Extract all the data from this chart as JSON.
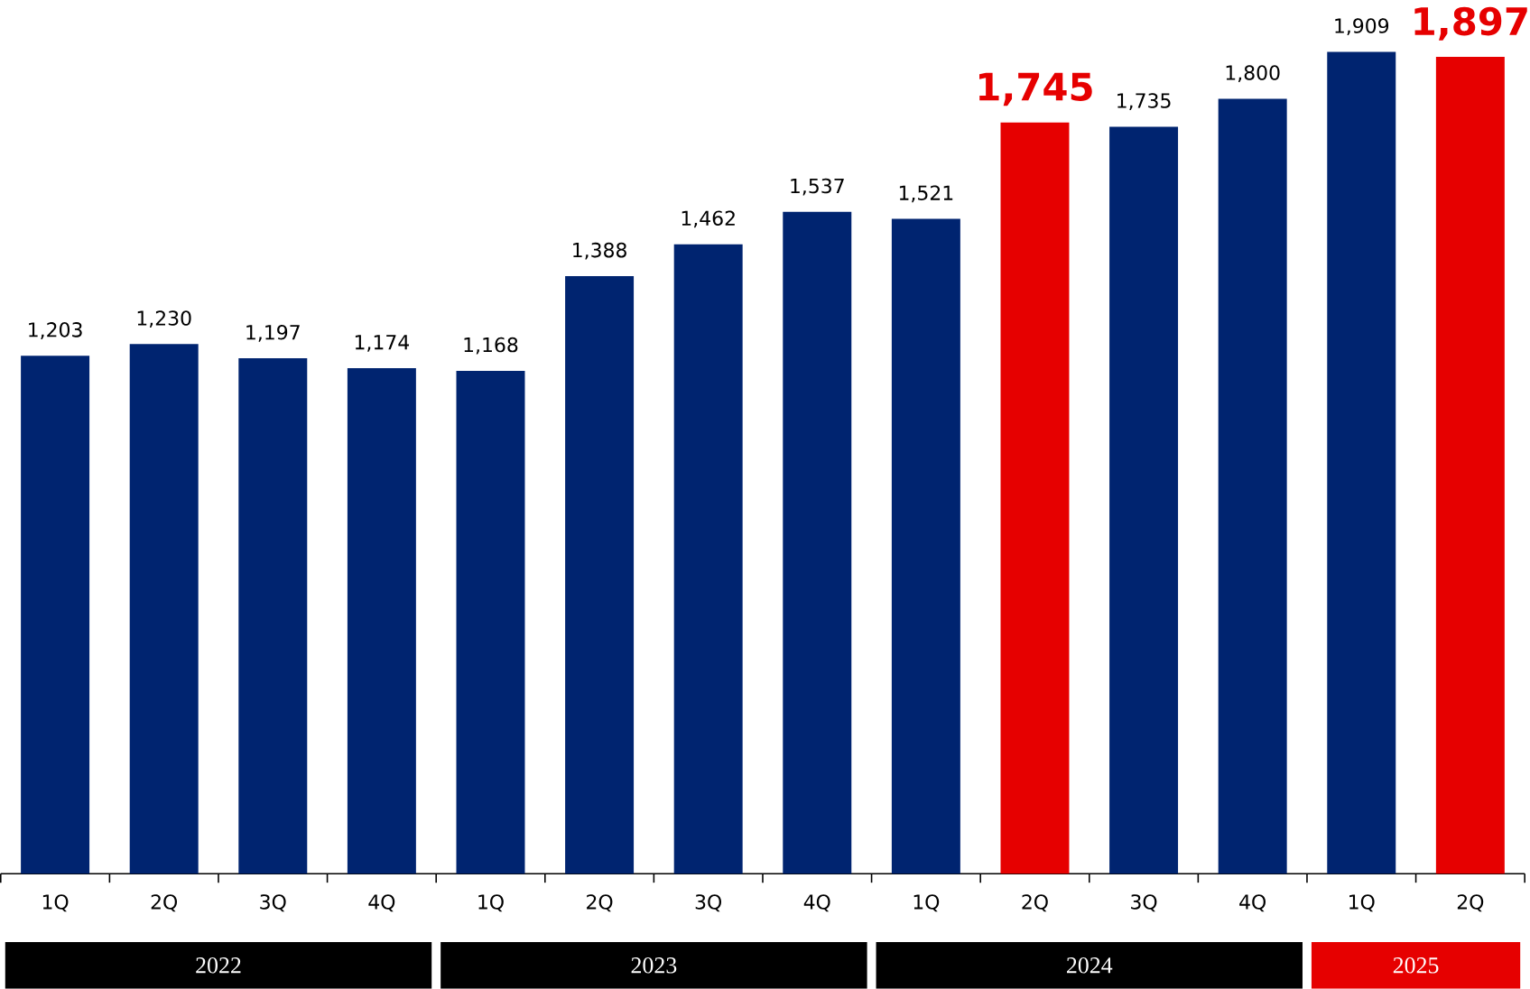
{
  "chart_data": {
    "type": "bar",
    "categories": [
      "1Q",
      "2Q",
      "3Q",
      "4Q",
      "1Q",
      "2Q",
      "3Q",
      "4Q",
      "1Q",
      "2Q",
      "3Q",
      "4Q",
      "1Q",
      "2Q"
    ],
    "values": [
      1203,
      1230,
      1197,
      1174,
      1168,
      1388,
      1462,
      1537,
      1521,
      1745,
      1735,
      1800,
      1909,
      1897
    ],
    "value_labels": [
      "1,203",
      "1,230",
      "1,197",
      "1,174",
      "1,168",
      "1,388",
      "1,462",
      "1,537",
      "1,521",
      "1,745",
      "1,735",
      "1,800",
      "1,909",
      "1,897"
    ],
    "colors": [
      "#002470",
      "#002470",
      "#002470",
      "#002470",
      "#002470",
      "#002470",
      "#002470",
      "#002470",
      "#002470",
      "#e60000",
      "#002470",
      "#002470",
      "#002470",
      "#e60000"
    ],
    "relative": false,
    "annotations": [
      "2022",
      "2023",
      "2024",
      "2025"
    ]
  }
}
